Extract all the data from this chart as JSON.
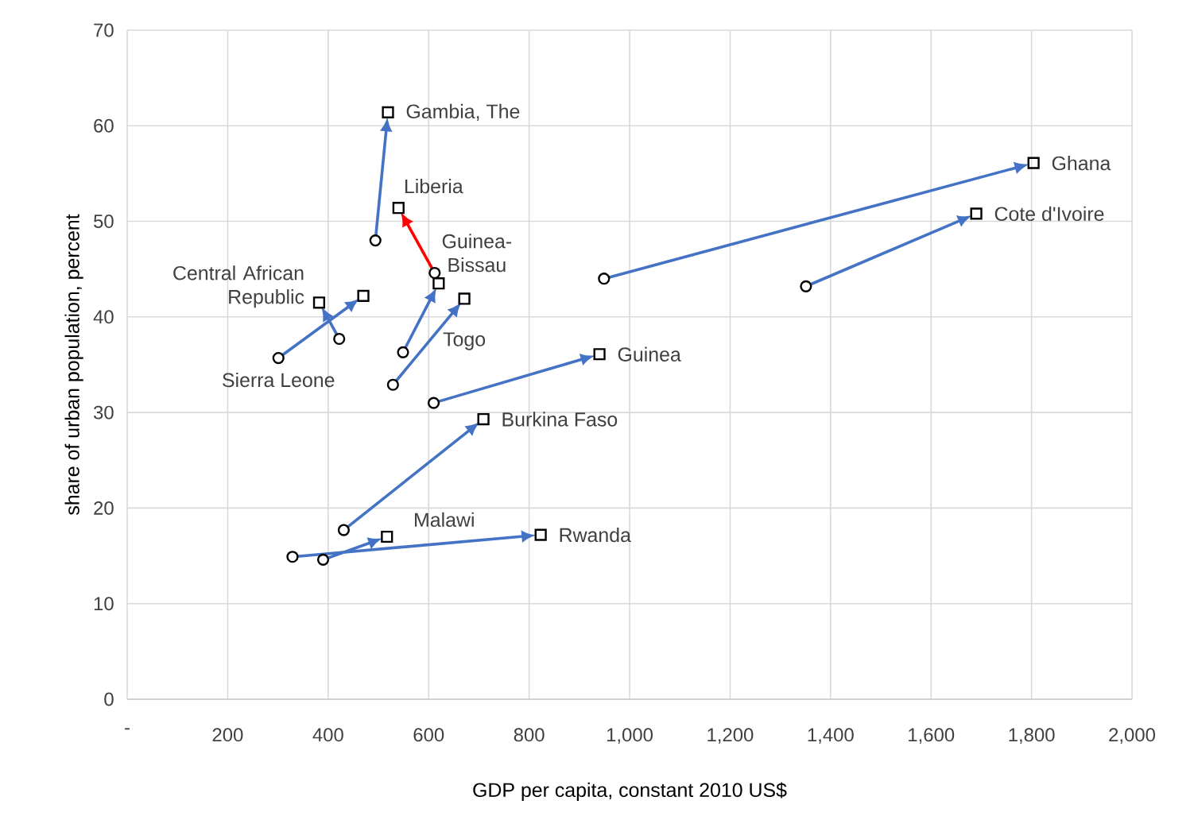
{
  "chart_data": {
    "type": "scatter",
    "xlabel": "GDP per capita, constant 2010 US$",
    "ylabel": "share of urban population, percent",
    "xlim": [
      0,
      2000
    ],
    "ylim": [
      0,
      70
    ],
    "xticks": [
      {
        "value": 0,
        "label": "-"
      },
      200,
      400,
      600,
      800,
      {
        "value": 1000,
        "label": "1,000"
      },
      {
        "value": 1200,
        "label": "1,200"
      },
      {
        "value": 1400,
        "label": "1,400"
      },
      {
        "value": 1600,
        "label": "1,600"
      },
      {
        "value": 1800,
        "label": "1,800"
      },
      {
        "value": 2000,
        "label": "2,000"
      }
    ],
    "yticks": [
      0,
      10,
      20,
      30,
      40,
      50,
      60,
      70
    ],
    "grid": true,
    "series": [
      {
        "marker": "circle",
        "color": "#000000",
        "x": [
          494,
          612,
          549,
          529,
          422,
          301,
          610,
          431,
          390,
          329,
          949,
          1351
        ],
        "values": [
          48.0,
          44.6,
          36.3,
          32.9,
          37.7,
          35.7,
          31.0,
          17.7,
          14.6,
          14.9,
          44.0,
          43.2
        ]
      },
      {
        "marker": "square",
        "color": "#000000",
        "x": [
          519,
          540,
          620,
          671,
          382,
          470,
          940,
          709,
          517,
          823,
          1804,
          1690
        ],
        "values": [
          61.4,
          51.4,
          43.5,
          41.9,
          41.5,
          42.2,
          36.1,
          29.3,
          17.0,
          17.2,
          56.1,
          50.8
        ]
      }
    ],
    "annotations": [
      {
        "text": "Gambia, The",
        "x": 519,
        "y": 61.4
      },
      {
        "text": "Liberia",
        "x": 540,
        "y": 51.4
      },
      {
        "text": "Guinea-Bissau",
        "x": 620,
        "y": 43.5
      },
      {
        "text": "Togo",
        "x": 671,
        "y": 41.9
      },
      {
        "text": "Central African Republic",
        "x": 382,
        "y": 41.5
      },
      {
        "text": "Sierra Leone",
        "x": 301,
        "y": 35.7
      },
      {
        "text": "Guinea",
        "x": 940,
        "y": 36.1
      },
      {
        "text": "Burkina Faso",
        "x": 709,
        "y": 29.3
      },
      {
        "text": "Malawi",
        "x": 517,
        "y": 17.0
      },
      {
        "text": "Rwanda",
        "x": 823,
        "y": 17.2
      },
      {
        "text": "Ghana",
        "x": 1804,
        "y": 56.1
      },
      {
        "text": "Cote d'Ivoire",
        "x": 1690,
        "y": 50.8
      }
    ]
  }
}
